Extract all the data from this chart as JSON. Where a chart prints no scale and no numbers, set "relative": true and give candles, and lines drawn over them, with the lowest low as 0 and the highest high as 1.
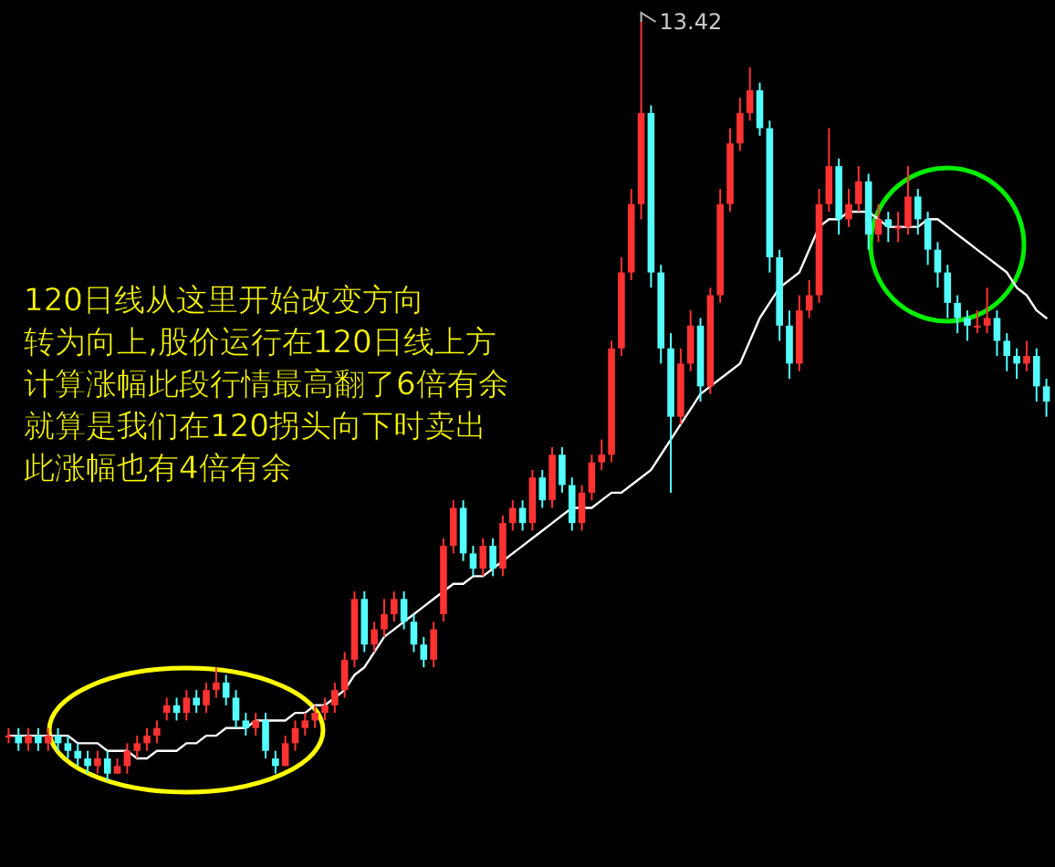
{
  "chart_data": {
    "type": "candlestick",
    "relative": true,
    "categories": [
      null,
      null,
      null,
      null,
      null,
      null,
      null,
      null,
      null,
      null,
      null,
      null,
      null,
      null,
      null,
      null,
      null,
      null,
      null,
      null,
      null,
      null,
      null,
      null,
      null,
      null,
      null,
      null,
      null,
      null,
      null,
      null,
      null,
      null,
      null,
      null,
      null,
      null,
      null,
      null,
      null,
      null,
      null,
      null,
      null,
      null,
      null,
      null,
      null,
      null,
      null,
      null,
      null,
      null,
      null,
      null,
      null,
      null,
      null,
      null,
      null,
      null,
      null,
      null,
      null,
      null,
      null,
      null,
      null,
      null,
      null,
      null,
      null,
      null,
      null,
      null,
      null,
      null,
      null,
      null,
      null,
      null,
      null,
      null,
      null,
      null,
      null,
      null,
      null,
      null,
      null,
      null,
      null,
      null,
      null,
      null,
      null,
      null,
      null,
      null,
      null,
      null,
      null,
      null,
      null,
      null
    ],
    "ohlc": [
      [
        0.06,
        0.07,
        0.05,
        0.06
      ],
      [
        0.06,
        0.07,
        0.04,
        0.05
      ],
      [
        0.05,
        0.07,
        0.04,
        0.06
      ],
      [
        0.06,
        0.07,
        0.04,
        0.05
      ],
      [
        0.05,
        0.07,
        0.04,
        0.06
      ],
      [
        0.06,
        0.07,
        0.04,
        0.05
      ],
      [
        0.05,
        0.06,
        0.03,
        0.04
      ],
      [
        0.04,
        0.05,
        0.02,
        0.03
      ],
      [
        0.03,
        0.04,
        0.01,
        0.02
      ],
      [
        0.02,
        0.04,
        0.01,
        0.03
      ],
      [
        0.03,
        0.04,
        0,
        0.01
      ],
      [
        0.01,
        0.03,
        0.01,
        0.02
      ],
      [
        0.02,
        0.05,
        0.01,
        0.04
      ],
      [
        0.04,
        0.06,
        0.03,
        0.05
      ],
      [
        0.05,
        0.07,
        0.04,
        0.06
      ],
      [
        0.06,
        0.08,
        0.05,
        0.07
      ],
      [
        0.09,
        0.11,
        0.08,
        0.1
      ],
      [
        0.1,
        0.11,
        0.08,
        0.09
      ],
      [
        0.09,
        0.12,
        0.08,
        0.11
      ],
      [
        0.11,
        0.12,
        0.09,
        0.1
      ],
      [
        0.1,
        0.13,
        0.09,
        0.12
      ],
      [
        0.12,
        0.15,
        0.11,
        0.13
      ],
      [
        0.13,
        0.14,
        0.1,
        0.11
      ],
      [
        0.11,
        0.12,
        0.07,
        0.08
      ],
      [
        0.08,
        0.09,
        0.06,
        0.07
      ],
      [
        0.07,
        0.09,
        0.06,
        0.08
      ],
      [
        0.08,
        0.09,
        0.03,
        0.04
      ],
      [
        0.03,
        0.04,
        0.01,
        0.02
      ],
      [
        0.02,
        0.06,
        0.02,
        0.05
      ],
      [
        0.05,
        0.08,
        0.04,
        0.07
      ],
      [
        0.07,
        0.09,
        0.06,
        0.08
      ],
      [
        0.08,
        0.1,
        0.07,
        0.09
      ],
      [
        0.09,
        0.11,
        0.08,
        0.1
      ],
      [
        0.1,
        0.13,
        0.09,
        0.12
      ],
      [
        0.12,
        0.17,
        0.11,
        0.16
      ],
      [
        0.16,
        0.25,
        0.15,
        0.24
      ],
      [
        0.24,
        0.25,
        0.17,
        0.18
      ],
      [
        0.18,
        0.21,
        0.17,
        0.2
      ],
      [
        0.2,
        0.24,
        0.19,
        0.22
      ],
      [
        0.22,
        0.25,
        0.21,
        0.24
      ],
      [
        0.24,
        0.25,
        0.2,
        0.21
      ],
      [
        0.21,
        0.22,
        0.17,
        0.18
      ],
      [
        0.18,
        0.19,
        0.15,
        0.16
      ],
      [
        0.16,
        0.21,
        0.15,
        0.2
      ],
      [
        0.22,
        0.32,
        0.21,
        0.31
      ],
      [
        0.31,
        0.37,
        0.3,
        0.36
      ],
      [
        0.36,
        0.37,
        0.29,
        0.3
      ],
      [
        0.3,
        0.31,
        0.27,
        0.28
      ],
      [
        0.28,
        0.32,
        0.27,
        0.31
      ],
      [
        0.31,
        0.32,
        0.27,
        0.28
      ],
      [
        0.28,
        0.35,
        0.27,
        0.34
      ],
      [
        0.34,
        0.37,
        0.33,
        0.36
      ],
      [
        0.36,
        0.37,
        0.33,
        0.34
      ],
      [
        0.34,
        0.41,
        0.33,
        0.4
      ],
      [
        0.4,
        0.41,
        0.36,
        0.37
      ],
      [
        0.37,
        0.44,
        0.36,
        0.43
      ],
      [
        0.43,
        0.44,
        0.38,
        0.39
      ],
      [
        0.39,
        0.4,
        0.33,
        0.34
      ],
      [
        0.34,
        0.39,
        0.33,
        0.38
      ],
      [
        0.38,
        0.43,
        0.37,
        0.42
      ],
      [
        0.42,
        0.45,
        0.41,
        0.43
      ],
      [
        0.43,
        0.58,
        0.42,
        0.57
      ],
      [
        0.57,
        0.69,
        0.56,
        0.67
      ],
      [
        0.67,
        0.78,
        0.66,
        0.76
      ],
      [
        0.76,
        1,
        0.74,
        0.88
      ],
      [
        0.88,
        0.89,
        0.65,
        0.67
      ],
      [
        0.67,
        0.68,
        0.55,
        0.57
      ],
      [
        0.57,
        0.59,
        0.38,
        0.48
      ],
      [
        0.48,
        0.57,
        0.47,
        0.55
      ],
      [
        0.55,
        0.62,
        0.54,
        0.6
      ],
      [
        0.6,
        0.61,
        0.5,
        0.52
      ],
      [
        0.52,
        0.65,
        0.51,
        0.64
      ],
      [
        0.64,
        0.78,
        0.63,
        0.76
      ],
      [
        0.76,
        0.86,
        0.75,
        0.84
      ],
      [
        0.84,
        0.9,
        0.83,
        0.88
      ],
      [
        0.88,
        0.94,
        0.87,
        0.91
      ],
      [
        0.91,
        0.92,
        0.85,
        0.86
      ],
      [
        0.86,
        0.87,
        0.67,
        0.69
      ],
      [
        0.69,
        0.7,
        0.58,
        0.6
      ],
      [
        0.6,
        0.62,
        0.53,
        0.55
      ],
      [
        0.55,
        0.64,
        0.54,
        0.62
      ],
      [
        0.62,
        0.66,
        0.61,
        0.64
      ],
      [
        0.64,
        0.78,
        0.63,
        0.76
      ],
      [
        0.76,
        0.86,
        0.75,
        0.81
      ],
      [
        0.81,
        0.82,
        0.72,
        0.74
      ],
      [
        0.74,
        0.78,
        0.73,
        0.76
      ],
      [
        0.76,
        0.81,
        0.75,
        0.79
      ],
      [
        0.79,
        0.8,
        0.7,
        0.72
      ],
      [
        0.72,
        0.76,
        0.71,
        0.74
      ],
      [
        0.74,
        0.75,
        0.71,
        0.73
      ],
      [
        0.73,
        0.75,
        0.71,
        0.73
      ],
      [
        0.73,
        0.81,
        0.72,
        0.77
      ],
      [
        0.77,
        0.78,
        0.72,
        0.74
      ],
      [
        0.74,
        0.75,
        0.68,
        0.7
      ],
      [
        0.7,
        0.71,
        0.65,
        0.67
      ],
      [
        0.67,
        0.68,
        0.61,
        0.63
      ],
      [
        0.63,
        0.64,
        0.59,
        0.61
      ],
      [
        0.61,
        0.62,
        0.58,
        0.6
      ],
      [
        0.6,
        0.62,
        0.59,
        0.6
      ],
      [
        0.6,
        0.65,
        0.59,
        0.61
      ],
      [
        0.61,
        0.62,
        0.56,
        0.58
      ],
      [
        0.58,
        0.59,
        0.54,
        0.56
      ],
      [
        0.56,
        0.57,
        0.53,
        0.55
      ],
      [
        0.55,
        0.58,
        0.54,
        0.56
      ],
      [
        0.56,
        0.57,
        0.5,
        0.52
      ],
      [
        0.52,
        0.53,
        0.48,
        0.5
      ]
    ],
    "series": [
      {
        "type": "line",
        "color": "#ffffff",
        "values": [
          0.06,
          0.06,
          0.06,
          0.06,
          0.06,
          0.06,
          0.06,
          0.05,
          0.05,
          0.05,
          0.04,
          0.04,
          0.04,
          0.03,
          0.03,
          0.04,
          0.04,
          0.04,
          0.05,
          0.05,
          0.06,
          0.06,
          0.07,
          0.07,
          0.07,
          0.08,
          0.08,
          0.08,
          0.08,
          0.09,
          0.09,
          0.1,
          0.1,
          0.11,
          0.12,
          0.14,
          0.15,
          0.17,
          0.19,
          0.2,
          0.21,
          0.22,
          0.23,
          0.24,
          0.25,
          0.26,
          0.26,
          0.27,
          0.27,
          0.28,
          0.29,
          0.3,
          0.31,
          0.32,
          0.33,
          0.34,
          0.35,
          0.36,
          0.36,
          0.36,
          0.37,
          0.38,
          0.38,
          0.39,
          0.4,
          0.41,
          0.43,
          0.45,
          0.47,
          0.49,
          0.51,
          0.52,
          0.53,
          0.54,
          0.55,
          0.58,
          0.61,
          0.63,
          0.65,
          0.66,
          0.67,
          0.7,
          0.73,
          0.74,
          0.74,
          0.75,
          0.75,
          0.75,
          0.74,
          0.73,
          0.73,
          0.73,
          0.73,
          0.74,
          0.74,
          0.73,
          0.72,
          0.71,
          0.7,
          0.69,
          0.68,
          0.67,
          0.65,
          0.64,
          0.62,
          0.61
        ]
      }
    ],
    "annotations": [
      "13.42",
      "120日线从这里开始改变方向",
      "转为向上,股价运行在120日线上方",
      "计算涨幅此段行情最高翻了6倍有余",
      "就算是我们在120拐头向下时卖出",
      "此涨幅也有4倍有余"
    ]
  }
}
